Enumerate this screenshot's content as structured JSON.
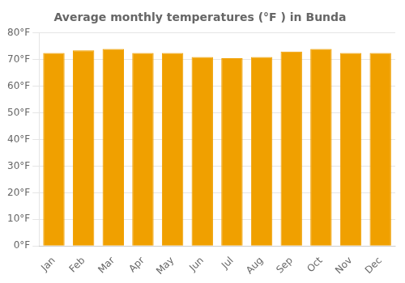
{
  "chart_data": {
    "type": "bar",
    "title": "Average monthly temperatures (°F ) in Bunda",
    "categories": [
      "Jan",
      "Feb",
      "Mar",
      "Apr",
      "May",
      "Jun",
      "Jul",
      "Aug",
      "Sep",
      "Oct",
      "Nov",
      "Dec"
    ],
    "values": [
      72.5,
      73.5,
      74.0,
      72.5,
      72.5,
      71.0,
      70.5,
      71.0,
      73.0,
      74.0,
      72.5,
      72.5
    ],
    "color": "#F0A000",
    "ylim": [
      0,
      80
    ],
    "yticks": [
      {
        "value": 0,
        "label": "0°F"
      },
      {
        "value": 10,
        "label": "10°F"
      },
      {
        "value": 20,
        "label": "20°F"
      },
      {
        "value": 30,
        "label": "30°F"
      },
      {
        "value": 40,
        "label": "40°F"
      },
      {
        "value": 50,
        "label": "50°F"
      },
      {
        "value": 60,
        "label": "60°F"
      },
      {
        "value": 70,
        "label": "70°F"
      },
      {
        "value": 80,
        "label": "80°F"
      }
    ],
    "grid": true
  }
}
